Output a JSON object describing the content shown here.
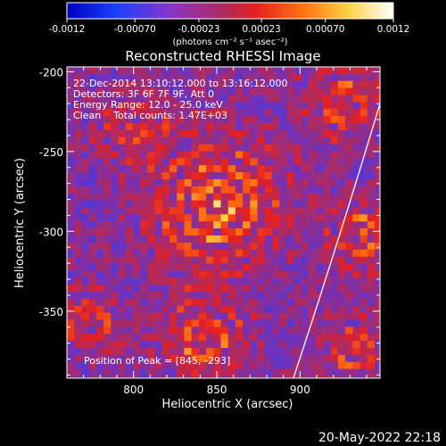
{
  "colorbar": {
    "tick_labels": [
      "-0.0012",
      "-0.00070",
      "-0.00023",
      "0.00023",
      "0.00070",
      "0.0012"
    ],
    "unit_label": "(photons cm⁻² s⁻¹ asec⁻²)",
    "range": [
      -0.0012,
      0.0012
    ]
  },
  "plot": {
    "title": "Reconstructed RHESSI Image",
    "xlabel": "Heliocentric X (arcsec)",
    "ylabel": "Heliocentric Y (arcsec)",
    "x_ticks": [
      "800",
      "850",
      "900"
    ],
    "y_ticks": [
      "-200",
      "-250",
      "-300",
      "-350"
    ]
  },
  "annotation": {
    "line1": "22-Dec-2014 13:10:12.000 to 13:16:12.000",
    "line2": "Detectors: 3F 6F 7F 9F, Att 0",
    "line3": "Energy Range: 12.0 - 25.0 keV",
    "line4": "Clean    Total counts: 1.47E+03",
    "peak": "Position of Peak = [845, -293]"
  },
  "footer": {
    "date": "20-May-2022 22:18"
  },
  "chart_data": {
    "type": "heatmap",
    "title": "Reconstructed RHESSI Image",
    "xlabel": "Heliocentric X (arcsec)",
    "ylabel": "Heliocentric Y (arcsec)",
    "xlim": [
      760,
      948
    ],
    "ylim": [
      -392,
      -197
    ],
    "value_range": [
      -0.0012,
      0.0012
    ],
    "colormap": "rhessi-fire (blue-purple-red-orange-yellow-white)",
    "peak_position": [
      845,
      -293
    ],
    "limb": [
      [
        948,
        -220
      ],
      [
        920,
        -310
      ],
      [
        896,
        -392
      ]
    ],
    "sources": [
      {
        "x": 848,
        "y": -280,
        "amp": 0.0011,
        "r": 38
      },
      {
        "x": 795,
        "y": -230,
        "amp": 0.0007,
        "r": 20
      },
      {
        "x": 925,
        "y": -218,
        "amp": 0.0008,
        "r": 22
      },
      {
        "x": 935,
        "y": -300,
        "amp": 0.0009,
        "r": 20
      },
      {
        "x": 770,
        "y": -355,
        "amp": 0.0007,
        "r": 18
      },
      {
        "x": 840,
        "y": -365,
        "amp": 0.0009,
        "r": 24
      },
      {
        "x": 930,
        "y": -372,
        "amp": 0.0008,
        "r": 18
      }
    ]
  }
}
